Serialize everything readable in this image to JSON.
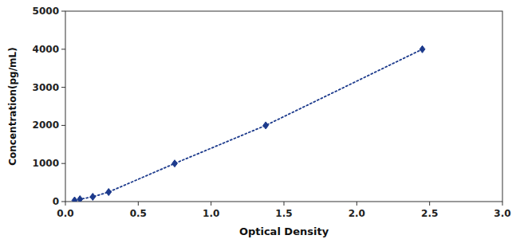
{
  "chart_data": {
    "type": "line",
    "x": [
      0.063,
      0.1,
      0.188,
      0.297,
      0.75,
      1.375,
      2.45
    ],
    "values": [
      31.25,
      62.5,
      125,
      250,
      1000,
      2000,
      4000
    ],
    "color": "#1c3a8c",
    "marker": "diamond",
    "line_style": "dotted",
    "xlabel": "Optical Density",
    "ylabel": "Concentration(pg/mL)",
    "xlim": [
      0,
      3
    ],
    "ylim": [
      0,
      5000
    ],
    "xticks": [
      {
        "value": 0,
        "label": "0.0"
      },
      0.5,
      {
        "value": 1,
        "label": "1.0"
      },
      1.5,
      {
        "value": 2,
        "label": "2.0"
      },
      2.5,
      {
        "value": 3,
        "label": "3.0"
      }
    ],
    "yticks": [
      0,
      1000,
      2000,
      3000,
      4000,
      5000
    ]
  }
}
